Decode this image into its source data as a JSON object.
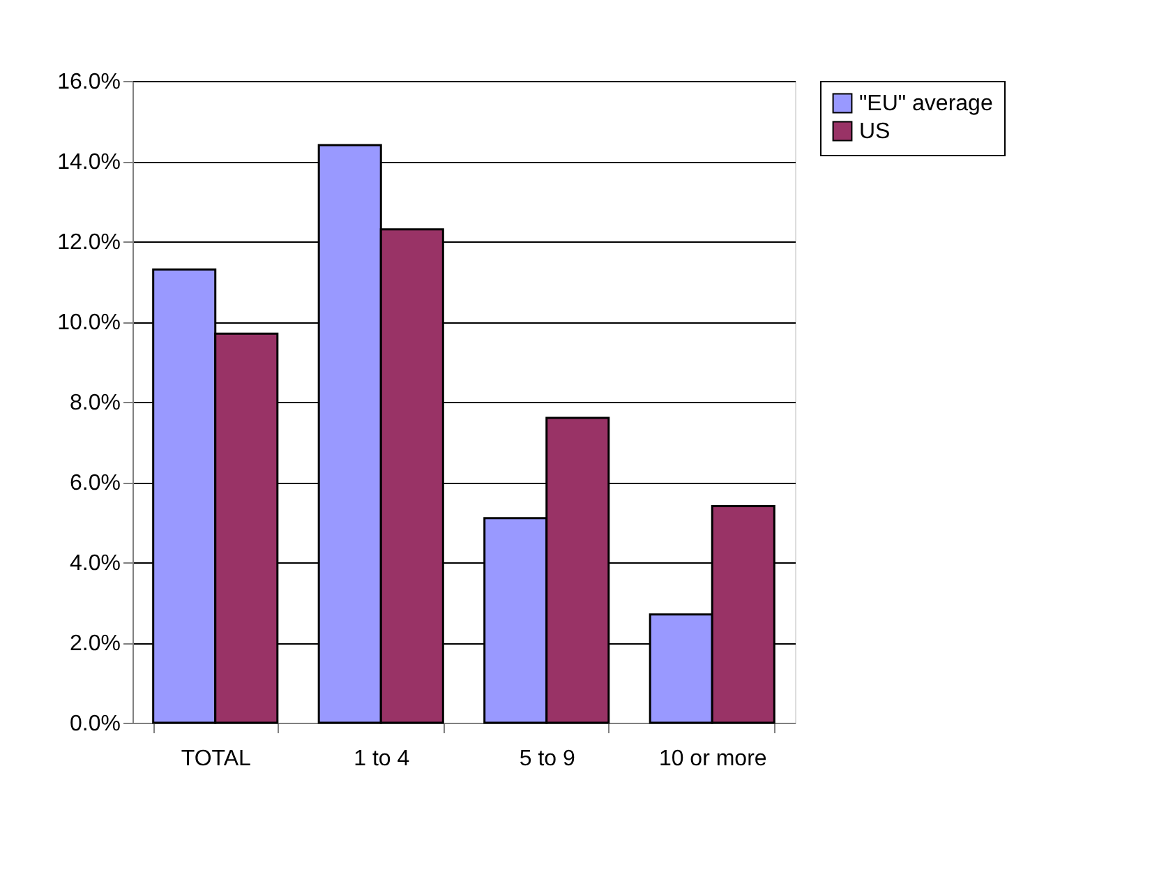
{
  "chart_data": {
    "type": "bar",
    "categories": [
      "TOTAL",
      "1 to 4",
      "5 to 9",
      "10 or more"
    ],
    "series": [
      {
        "name": "\"EU\" average",
        "color": "#9999ff",
        "values": [
          11.3,
          14.4,
          5.1,
          2.7
        ]
      },
      {
        "name": "US",
        "color": "#993366",
        "values": [
          9.7,
          12.3,
          7.6,
          5.4
        ]
      }
    ],
    "ylim": [
      0,
      16
    ],
    "yticks": [
      {
        "value": 0,
        "label": "0.0%"
      },
      {
        "value": 2,
        "label": "2.0%"
      },
      {
        "value": 4,
        "label": "4.0%"
      },
      {
        "value": 6,
        "label": "6.0%"
      },
      {
        "value": 8,
        "label": "8.0%"
      },
      {
        "value": 10,
        "label": "10.0%"
      },
      {
        "value": 12,
        "label": "12.0%"
      },
      {
        "value": 14,
        "label": "14.0%"
      },
      {
        "value": 16,
        "label": "16.0%"
      }
    ],
    "grid": "y",
    "legend": "right"
  }
}
